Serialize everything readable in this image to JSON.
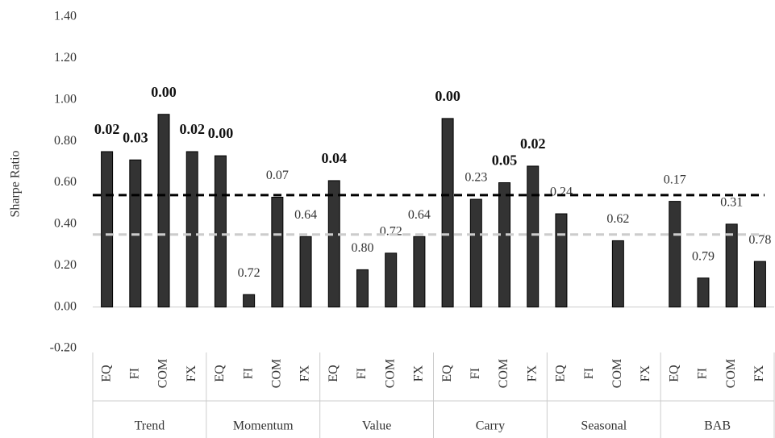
{
  "chart_data": {
    "type": "bar",
    "y_label": "Sharpe Ratio",
    "ylim": [
      -0.2,
      1.4
    ],
    "yticks": [
      {
        "value": -0.2,
        "label": "-0.20"
      },
      {
        "value": 0,
        "label": "0.00"
      },
      {
        "value": 0.2,
        "label": "0.20"
      },
      {
        "value": 0.4,
        "label": "0.40"
      },
      {
        "value": 0.6,
        "label": "0.60"
      },
      {
        "value": 0.8,
        "label": "0.80"
      },
      {
        "value": 1.0,
        "label": "1.00"
      },
      {
        "value": 1.2,
        "label": "1.20"
      },
      {
        "value": 1.4,
        "label": "1.40"
      }
    ],
    "color": "#333333",
    "reference_lines": [
      {
        "value": 0.54,
        "color": "#000000"
      },
      {
        "value": 0.35,
        "color": "#cccccc"
      }
    ],
    "groups": [
      {
        "name": "Trend",
        "categories": [
          "EQ",
          "FI",
          "COM",
          "FX"
        ],
        "values": [
          0.75,
          0.71,
          0.93,
          0.75
        ],
        "labels": [
          "0.02",
          "0.03",
          "0.00",
          "0.02"
        ],
        "bold": [
          true,
          true,
          true,
          true
        ]
      },
      {
        "name": "Momentum",
        "categories": [
          "EQ",
          "FI",
          "COM",
          "FX"
        ],
        "values": [
          0.73,
          0.06,
          0.53,
          0.34
        ],
        "labels": [
          "0.00",
          "0.72",
          "0.07",
          "0.64"
        ],
        "bold": [
          true,
          false,
          false,
          false
        ]
      },
      {
        "name": "Value",
        "categories": [
          "EQ",
          "FI",
          "COM",
          "FX"
        ],
        "values": [
          0.61,
          0.18,
          0.26,
          0.34
        ],
        "labels": [
          "0.04",
          "0.80",
          "0.72",
          "0.64"
        ],
        "bold": [
          true,
          false,
          false,
          false
        ]
      },
      {
        "name": "Carry",
        "categories": [
          "EQ",
          "FI",
          "COM",
          "FX"
        ],
        "values": [
          0.91,
          0.52,
          0.6,
          0.68
        ],
        "labels": [
          "0.00",
          "0.23",
          "0.05",
          "0.02"
        ],
        "bold": [
          true,
          false,
          true,
          true
        ]
      },
      {
        "name": "Seasonal",
        "categories": [
          "EQ",
          "FI",
          "COM",
          "FX"
        ],
        "values": [
          0.45,
          null,
          0.32,
          null
        ],
        "labels": [
          "0.24",
          null,
          "0.62",
          null
        ],
        "bold": [
          false,
          false,
          false,
          false
        ]
      },
      {
        "name": "BAB",
        "categories": [
          "EQ",
          "FI",
          "COM",
          "FX"
        ],
        "values": [
          0.51,
          0.14,
          0.4,
          0.22
        ],
        "labels": [
          "0.17",
          "0.79",
          "0.31",
          "0.78"
        ],
        "bold": [
          false,
          false,
          false,
          false
        ]
      }
    ]
  }
}
